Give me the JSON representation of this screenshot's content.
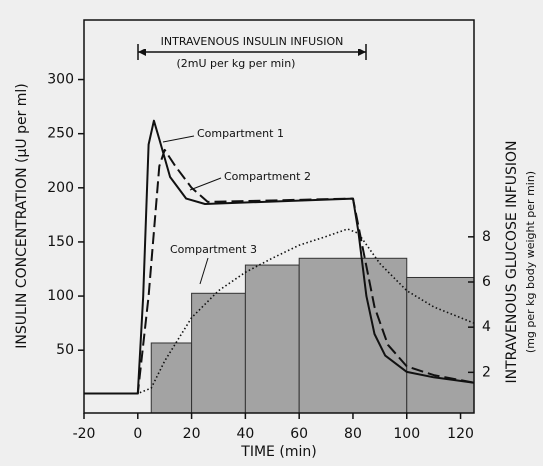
{
  "chart_data": {
    "type": "line",
    "annotation": "INTRAVENOUS INSULIN INFUSION",
    "annotation_sub": "(2mU per kg per min)",
    "xlabel": "TIME (min)",
    "ylabel": "INSULIN CONCENTRATION (µU per ml)",
    "y2label": "INTRAVENOUS GLUCOSE INFUSION",
    "y2label_sub": "(mg per kg body weight per min)",
    "xlim": [
      -20,
      125
    ],
    "xticks": [
      -20,
      0,
      20,
      40,
      60,
      80,
      100,
      120
    ],
    "ylim": [
      -8,
      355
    ],
    "yticks": [
      50,
      100,
      150,
      200,
      250,
      300
    ],
    "y2lim": [
      0.2,
      17.6
    ],
    "y2ticks": [
      2,
      4,
      6,
      8
    ],
    "glucose_infusion": {
      "axis": "y2",
      "color": "#a3a3a3",
      "bins": [
        5,
        20,
        40,
        60,
        100,
        125
      ],
      "values": [
        3.3,
        5.5,
        6.75,
        7.05,
        6.2
      ]
    },
    "series": [
      {
        "name": "Compartment 1",
        "color": "#111111",
        "dash": "solid",
        "x": [
          -20,
          0,
          2,
          4,
          6,
          8,
          12,
          18,
          25,
          80,
          82,
          85,
          88,
          92,
          100,
          110,
          125
        ],
        "values": [
          10,
          10,
          100,
          240,
          262,
          245,
          210,
          190,
          185,
          190,
          160,
          100,
          65,
          45,
          30,
          25,
          20
        ]
      },
      {
        "name": "Compartment 2",
        "color": "#111111",
        "dash": "dashed",
        "x": [
          -20,
          0,
          4,
          8,
          10,
          14,
          20,
          26,
          80,
          84,
          88,
          93,
          100,
          110,
          125
        ],
        "values": [
          10,
          10,
          100,
          220,
          235,
          220,
          200,
          187,
          190,
          140,
          90,
          55,
          35,
          27,
          20
        ]
      },
      {
        "name": "Compartment 3",
        "color": "#111111",
        "dash": "dotted",
        "x": [
          -20,
          0,
          5,
          10,
          20,
          30,
          40,
          50,
          60,
          70,
          78,
          82,
          90,
          100,
          110,
          125
        ],
        "values": [
          10,
          10,
          15,
          40,
          80,
          105,
          122,
          135,
          147,
          155,
          162,
          158,
          130,
          105,
          90,
          75
        ]
      }
    ]
  }
}
